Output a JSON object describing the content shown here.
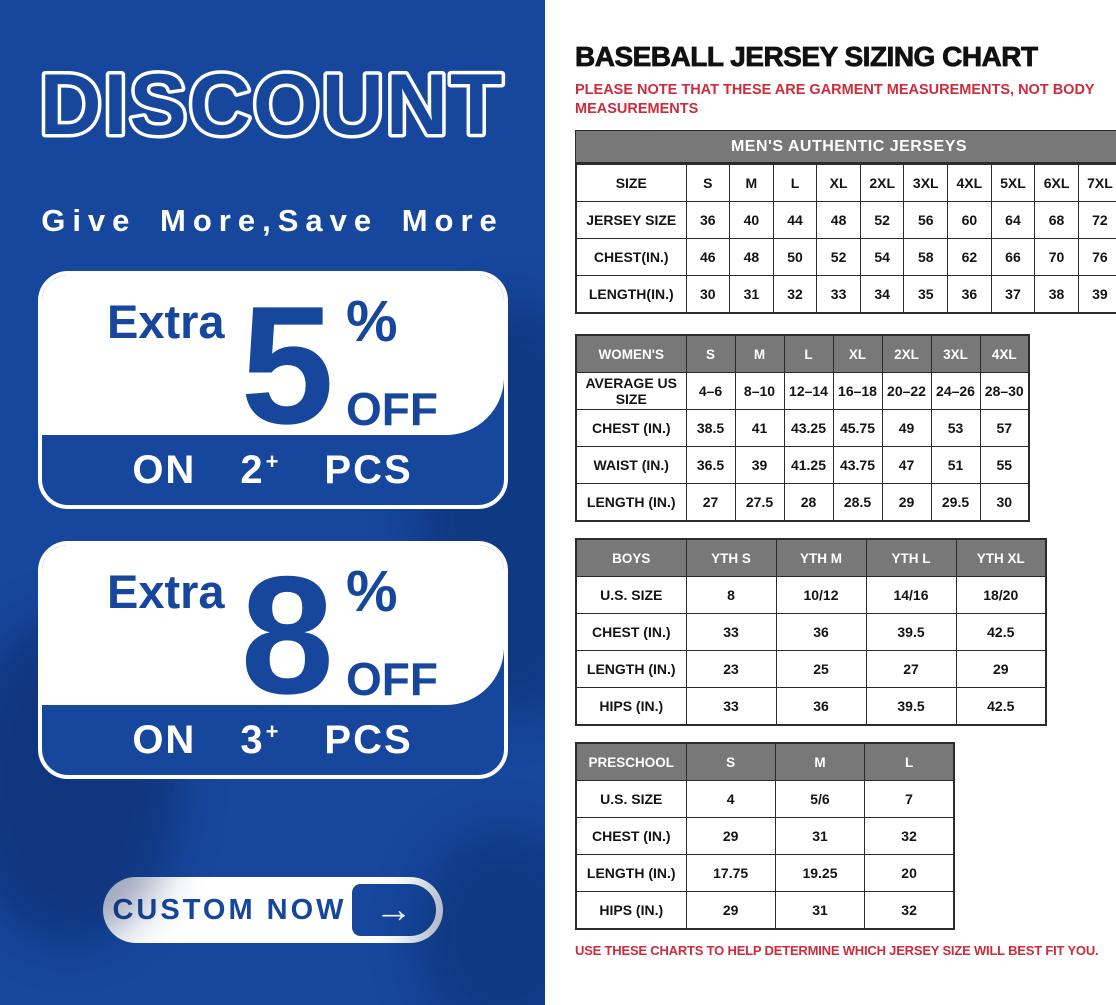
{
  "colors": {
    "brand_blue": "#16479d",
    "table_header_gray": "#787878",
    "alert_red": "#ce2b3b",
    "table_border": "#2b2b2b"
  },
  "left_panel": {
    "headline": "DISCOUNT",
    "tagline": "Give More,Save More",
    "offers": [
      {
        "prefix": "Extra",
        "value": "5",
        "percent_sign": "%",
        "off_label": "OFF",
        "on_label": "ON",
        "quantity": "2",
        "plus_sign": "+",
        "pcs_label": "PCS"
      },
      {
        "prefix": "Extra",
        "value": "8",
        "percent_sign": "%",
        "off_label": "OFF",
        "on_label": "ON",
        "quantity": "3",
        "plus_sign": "+",
        "pcs_label": "PCS"
      }
    ],
    "cta": {
      "label": "CUSTOM NOW",
      "arrow_icon": "→"
    }
  },
  "right_panel": {
    "title": "BASEBALL JERSEY SIZING CHART",
    "note": "PLEASE NOTE THAT THESE ARE GARMENT MEASUREMENTS, NOT BODY MEASUREMENTS",
    "footer": "USE THESE CHARTS TO HELP DETERMINE WHICH JERSEY SIZE WILL BEST FIT YOU.",
    "tables": [
      {
        "id": "mens",
        "banner": "MEN'S AUTHENTIC JERSEYS",
        "header_style": "plain",
        "header": [
          "SIZE",
          "S",
          "M",
          "L",
          "XL",
          "2XL",
          "3XL",
          "4XL",
          "5XL",
          "6XL",
          "7XL"
        ],
        "rows": [
          [
            "JERSEY SIZE",
            "36",
            "40",
            "44",
            "48",
            "52",
            "56",
            "60",
            "64",
            "68",
            "72"
          ],
          [
            "CHEST(IN.)",
            "46",
            "48",
            "50",
            "52",
            "54",
            "58",
            "62",
            "66",
            "70",
            "76"
          ],
          [
            "LENGTH(IN.)",
            "30",
            "31",
            "32",
            "33",
            "34",
            "35",
            "36",
            "37",
            "38",
            "39"
          ]
        ]
      },
      {
        "id": "womens",
        "header_style": "gray",
        "header": [
          "WOMEN'S",
          "S",
          "M",
          "L",
          "XL",
          "2XL",
          "3XL",
          "4XL"
        ],
        "rows": [
          [
            "AVERAGE US SIZE",
            "4–6",
            "8–10",
            "12–14",
            "16–18",
            "20–22",
            "24–26",
            "28–30"
          ],
          [
            "CHEST (IN.)",
            "38.5",
            "41",
            "43.25",
            "45.75",
            "49",
            "53",
            "57"
          ],
          [
            "WAIST (IN.)",
            "36.5",
            "39",
            "41.25",
            "43.75",
            "47",
            "51",
            "55"
          ],
          [
            "LENGTH (IN.)",
            "27",
            "27.5",
            "28",
            "28.5",
            "29",
            "29.5",
            "30"
          ]
        ]
      },
      {
        "id": "boys",
        "header_style": "gray",
        "header": [
          "BOYS",
          "YTH S",
          "YTH M",
          "YTH L",
          "YTH XL"
        ],
        "rows": [
          [
            "U.S. SIZE",
            "8",
            "10/12",
            "14/16",
            "18/20"
          ],
          [
            "CHEST (IN.)",
            "33",
            "36",
            "39.5",
            "42.5"
          ],
          [
            "LENGTH (IN.)",
            "23",
            "25",
            "27",
            "29"
          ],
          [
            "HIPS (IN.)",
            "33",
            "36",
            "39.5",
            "42.5"
          ]
        ]
      },
      {
        "id": "preschool",
        "header_style": "gray",
        "header": [
          "PRESCHOOL",
          "S",
          "M",
          "L"
        ],
        "rows": [
          [
            "U.S. SIZE",
            "4",
            "5/6",
            "7"
          ],
          [
            "CHEST (IN.)",
            "29",
            "31",
            "32"
          ],
          [
            "LENGTH (IN.)",
            "17.75",
            "19.25",
            "20"
          ],
          [
            "HIPS (IN.)",
            "29",
            "31",
            "32"
          ]
        ]
      }
    ]
  }
}
